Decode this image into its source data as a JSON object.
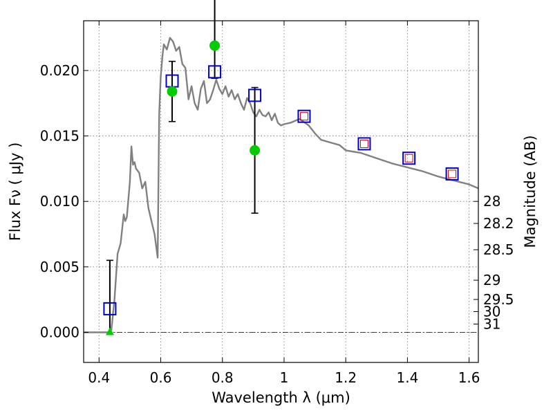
{
  "chart_data": {
    "type": "scatter",
    "xlabel": "Wavelength  λ (μm)",
    "ylabel_left": "Flux  Fν  ( μJy )",
    "ylabel_right": "Magnitude (AB)",
    "xlim": [
      0.35,
      1.63
    ],
    "ylim": [
      -0.0023,
      0.0238
    ],
    "grid": true,
    "x_ticks": [
      {
        "value": 0.4,
        "label": "0.4"
      },
      {
        "value": 0.6,
        "label": "0.6"
      },
      {
        "value": 0.8,
        "label": "0.8"
      },
      {
        "value": 1.0,
        "label": "1"
      },
      {
        "value": 1.2,
        "label": "1.2"
      },
      {
        "value": 1.4,
        "label": "1.4"
      },
      {
        "value": 1.6,
        "label": "1.6"
      }
    ],
    "y_ticks": [
      {
        "value": 0.0,
        "label": "0.000"
      },
      {
        "value": 0.005,
        "label": "0.005"
      },
      {
        "value": 0.01,
        "label": "0.010"
      },
      {
        "value": 0.015,
        "label": "0.015"
      },
      {
        "value": 0.02,
        "label": "0.020"
      }
    ],
    "mag_ticks": [
      {
        "value": 28,
        "label": "28"
      },
      {
        "value": 28.2,
        "label": "28.2"
      },
      {
        "value": 28.5,
        "label": "28.5"
      },
      {
        "value": 29,
        "label": "29"
      },
      {
        "value": 29.5,
        "label": "29.5"
      },
      {
        "value": 30,
        "label": "30"
      },
      {
        "value": 31,
        "label": "31"
      }
    ],
    "mag_zero_point_ujy": 23.0,
    "colors": {
      "model": "#808080",
      "model_squares": "#0000cc",
      "model_squares_inner": "#cc0000",
      "observed": "#00cc00",
      "errorbar": "#000000"
    },
    "model_spectrum": {
      "x": [
        0.35,
        0.43,
        0.44,
        0.45,
        0.46,
        0.47,
        0.48,
        0.485,
        0.49,
        0.5,
        0.505,
        0.51,
        0.515,
        0.52,
        0.53,
        0.54,
        0.55,
        0.56,
        0.57,
        0.58,
        0.59,
        0.595,
        0.6,
        0.605,
        0.61,
        0.62,
        0.63,
        0.64,
        0.65,
        0.66,
        0.67,
        0.68,
        0.69,
        0.7,
        0.71,
        0.72,
        0.73,
        0.74,
        0.75,
        0.76,
        0.77,
        0.78,
        0.79,
        0.8,
        0.81,
        0.82,
        0.83,
        0.84,
        0.85,
        0.86,
        0.87,
        0.88,
        0.89,
        0.9,
        0.91,
        0.92,
        0.93,
        0.94,
        0.95,
        0.96,
        0.97,
        0.98,
        0.99,
        1.0,
        1.02,
        1.05,
        1.08,
        1.1,
        1.12,
        1.15,
        1.18,
        1.2,
        1.25,
        1.3,
        1.35,
        1.4,
        1.45,
        1.5,
        1.55,
        1.6,
        1.63
      ],
      "y": [
        0.0,
        0.0,
        0.0002,
        0.0025,
        0.006,
        0.0068,
        0.009,
        0.0085,
        0.0088,
        0.0115,
        0.0142,
        0.0128,
        0.013,
        0.0125,
        0.0122,
        0.011,
        0.0115,
        0.0095,
        0.0085,
        0.0075,
        0.0057,
        0.0167,
        0.0195,
        0.021,
        0.022,
        0.0216,
        0.0225,
        0.0222,
        0.0215,
        0.0218,
        0.0205,
        0.0202,
        0.0178,
        0.0188,
        0.0175,
        0.017,
        0.0186,
        0.0192,
        0.0175,
        0.0178,
        0.0185,
        0.0193,
        0.0186,
        0.0182,
        0.0188,
        0.018,
        0.0185,
        0.0178,
        0.0182,
        0.0175,
        0.017,
        0.0179,
        0.0175,
        0.0168,
        0.0165,
        0.017,
        0.0166,
        0.0165,
        0.0168,
        0.0162,
        0.0167,
        0.016,
        0.0158,
        0.0159,
        0.016,
        0.0163,
        0.0158,
        0.0152,
        0.0147,
        0.0145,
        0.0143,
        0.0139,
        0.0137,
        0.0133,
        0.0129,
        0.0126,
        0.0123,
        0.0119,
        0.0116,
        0.0113,
        0.011
      ]
    },
    "model_photometry": {
      "x": [
        0.435,
        0.637,
        0.775,
        0.905,
        1.065,
        1.26,
        1.405,
        1.545
      ],
      "y": [
        0.0018,
        0.0192,
        0.0199,
        0.0181,
        0.0165,
        0.0144,
        0.0133,
        0.0121
      ],
      "inner_marker": [
        false,
        false,
        false,
        false,
        true,
        true,
        true,
        true
      ]
    },
    "observed": [
      {
        "x": 0.435,
        "y": 0.0,
        "err_low": 0.0,
        "err_high": 0.0055,
        "marker": "triangle"
      },
      {
        "x": 0.637,
        "y": 0.0184,
        "err_low": 0.0023,
        "err_high": 0.0023,
        "marker": "circle"
      },
      {
        "x": 0.775,
        "y": 0.0219,
        "err_low": 0.0025,
        "err_high": 0.006,
        "marker": "circle"
      },
      {
        "x": 0.905,
        "y": 0.0139,
        "err_low": 0.0048,
        "err_high": 0.0048,
        "marker": "circle"
      }
    ]
  }
}
